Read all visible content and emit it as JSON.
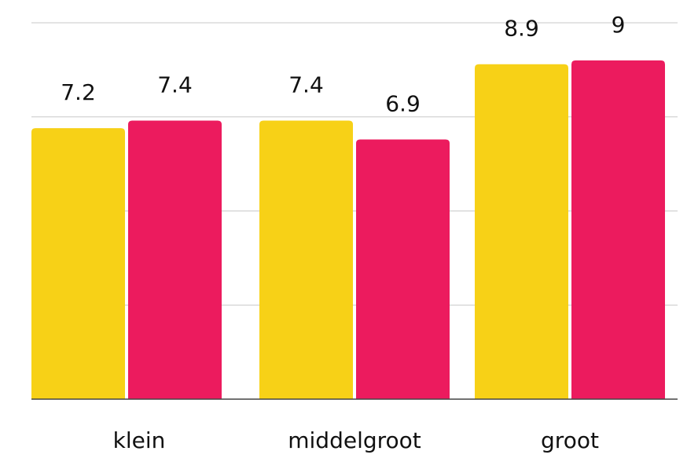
{
  "chart_data": {
    "type": "bar",
    "categories": [
      "klein",
      "middelgroot",
      "groot"
    ],
    "series": [
      {
        "color": "#f7d117",
        "values": [
          7.2,
          7.4,
          8.9
        ]
      },
      {
        "color": "#ec1b5e",
        "values": [
          7.4,
          6.9,
          9
        ]
      }
    ],
    "ylim": [
      0,
      10
    ],
    "yticks": [
      0,
      2.5,
      5,
      7.5,
      10
    ],
    "grid": true
  }
}
